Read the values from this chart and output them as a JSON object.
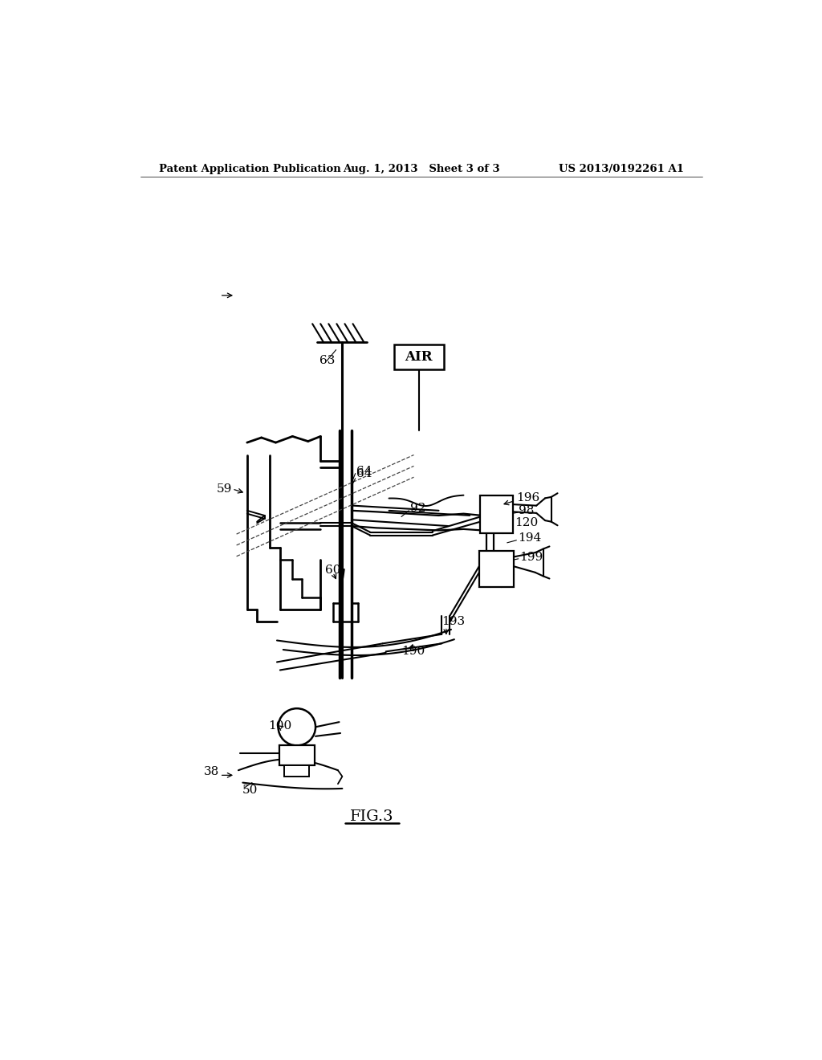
{
  "background_color": "#ffffff",
  "header_left": "Patent Application Publication",
  "header_center": "Aug. 1, 2013   Sheet 3 of 3",
  "header_right": "US 2013/0192261 A1",
  "figure_label": "FIG.3",
  "text_color": "#000000",
  "line_width": 1.4,
  "fig_width": 10.24,
  "fig_height": 13.2,
  "dpi": 100
}
